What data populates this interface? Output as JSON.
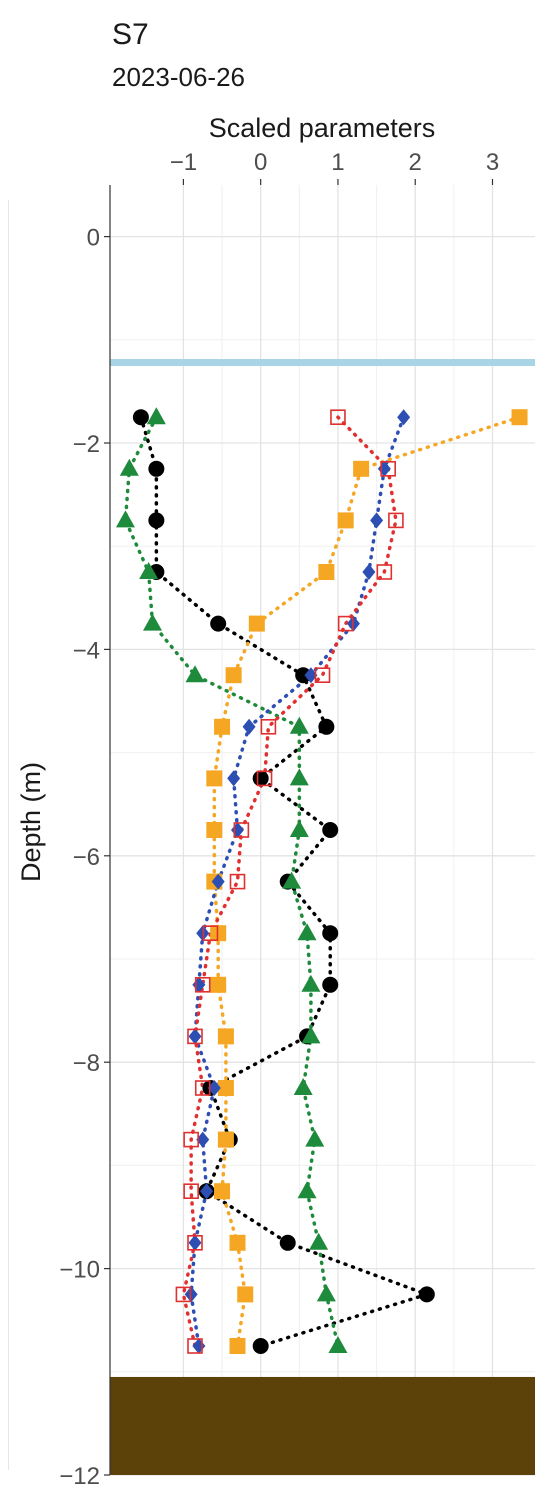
{
  "title": "S7",
  "subtitle": "2023-06-26",
  "chart_data": {
    "type": "scatter",
    "xlabel": "Scaled parameters",
    "ylabel": "Depth (m)",
    "xlim": [
      -1.95,
      3.55
    ],
    "ylim": [
      -12,
      0.5
    ],
    "x_ticks": [
      -1,
      0,
      1,
      2,
      3
    ],
    "x_tick_labels": [
      "−1",
      "0",
      "1",
      "2",
      "3"
    ],
    "y_ticks": [
      0,
      -2,
      -4,
      -6,
      -8,
      -10,
      -12
    ],
    "y_tick_labels": [
      "0",
      "−2",
      "−4",
      "−6",
      "−8",
      "−10",
      "−12"
    ],
    "grid": true,
    "reference_line": {
      "depth": -1.22,
      "color": "#a8d4e6"
    },
    "bottom_band": {
      "from": -11.05,
      "to": -12,
      "color": "#5c4209"
    },
    "series": [
      {
        "marker": "circle",
        "color": "#000000",
        "x": [
          -1.55,
          -1.35,
          -1.35,
          -1.35,
          -0.55,
          0.55,
          0.85,
          0.0,
          0.9,
          0.35,
          0.9,
          0.9,
          0.6,
          -0.65,
          -0.4,
          -0.7,
          0.35,
          2.15,
          0.0
        ],
        "y": [
          -1.75,
          -2.25,
          -2.75,
          -3.25,
          -3.75,
          -4.25,
          -4.75,
          -5.25,
          -5.75,
          -6.25,
          -6.75,
          -7.25,
          -7.75,
          -8.25,
          -8.75,
          -9.25,
          -9.75,
          -10.25,
          -10.75
        ]
      },
      {
        "marker": "triangle",
        "color": "#1e8a3c",
        "x": [
          -1.35,
          -1.7,
          -1.75,
          -1.45,
          -1.4,
          -0.85,
          0.5,
          0.5,
          0.5,
          0.4,
          0.6,
          0.65,
          0.65,
          0.55,
          0.7,
          0.6,
          0.75,
          0.85,
          1.0
        ],
        "y": [
          -1.75,
          -2.25,
          -2.75,
          -3.25,
          -3.75,
          -4.25,
          -4.75,
          -5.25,
          -5.75,
          -6.25,
          -6.75,
          -7.25,
          -7.75,
          -8.25,
          -8.75,
          -9.25,
          -9.75,
          -10.25,
          -10.75
        ]
      },
      {
        "marker": "square",
        "color": "#f5a623",
        "x": [
          3.35,
          1.3,
          1.1,
          0.85,
          -0.05,
          -0.35,
          -0.5,
          -0.6,
          -0.6,
          -0.6,
          -0.55,
          -0.55,
          -0.45,
          -0.45,
          -0.45,
          -0.5,
          -0.3,
          -0.2,
          -0.3
        ],
        "y": [
          -1.75,
          -2.25,
          -2.75,
          -3.25,
          -3.75,
          -4.25,
          -4.75,
          -5.25,
          -5.75,
          -6.25,
          -6.75,
          -7.25,
          -7.75,
          -8.25,
          -8.75,
          -9.25,
          -9.75,
          -10.25,
          -10.75
        ]
      },
      {
        "marker": "diamond",
        "color": "#2d4fb3",
        "x": [
          1.85,
          1.6,
          1.5,
          1.4,
          1.2,
          0.65,
          -0.15,
          -0.35,
          -0.3,
          -0.55,
          -0.75,
          -0.8,
          -0.85,
          -0.6,
          -0.75,
          -0.7,
          -0.85,
          -0.9,
          -0.8
        ],
        "y": [
          -1.75,
          -2.25,
          -2.75,
          -3.25,
          -3.75,
          -4.25,
          -4.75,
          -5.25,
          -5.75,
          -6.25,
          -6.75,
          -7.25,
          -7.75,
          -8.25,
          -8.75,
          -9.25,
          -9.75,
          -10.25,
          -10.75
        ]
      },
      {
        "marker": "open-square",
        "color": "#e03030",
        "x": [
          1.0,
          1.65,
          1.75,
          1.6,
          1.1,
          0.8,
          0.1,
          0.05,
          -0.25,
          -0.3,
          -0.65,
          -0.75,
          -0.85,
          -0.75,
          -0.9,
          -0.9,
          -0.85,
          -1.0,
          -0.85
        ],
        "y": [
          -1.75,
          -2.25,
          -2.75,
          -3.25,
          -3.75,
          -4.25,
          -4.75,
          -5.25,
          -5.75,
          -6.25,
          -6.75,
          -7.25,
          -7.75,
          -8.25,
          -8.75,
          -9.25,
          -9.75,
          -10.25,
          -10.75
        ]
      }
    ]
  }
}
